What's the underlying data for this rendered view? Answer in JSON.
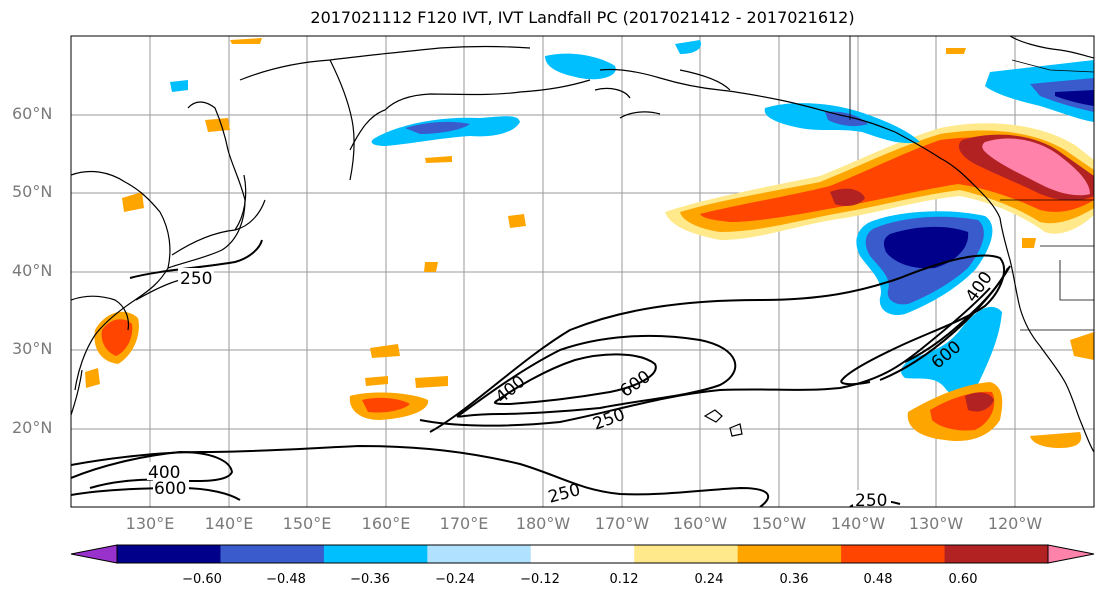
{
  "title": "2017021112 F120 IVT, IVT Landfall PC (2017021412 - 2017021612)",
  "lat_labels": [
    "60°N",
    "50°N",
    "40°N",
    "30°N",
    "20°N"
  ],
  "lon_labels": [
    "130°E",
    "140°E",
    "150°E",
    "160°E",
    "170°E",
    "180°W",
    "170°W",
    "160°W",
    "150°W",
    "140°W",
    "130°W",
    "120°W"
  ],
  "contour_labels": {
    "jp_250": "250",
    "c400_left": "400",
    "c600_left": "600",
    "c400_mid": "400",
    "c600_mid": "600",
    "c250_mid": "250",
    "c250_bottom": "250",
    "c250_right": "250",
    "c400_right": "400",
    "c600_right": "600"
  },
  "colorbar": {
    "tick_labels": [
      "−0.60",
      "−0.48",
      "−0.36",
      "−0.24",
      "−0.12",
      "0.12",
      "0.24",
      "0.36",
      "0.48",
      "0.60"
    ],
    "colors": [
      "#9932CC",
      "#00008B",
      "#3A5BCC",
      "#00BFFF",
      "#B0E2FF",
      "#FFFFFF",
      "#FFE98A",
      "#FFA500",
      "#FF4500",
      "#B22222",
      "#FF82AB"
    ]
  }
}
